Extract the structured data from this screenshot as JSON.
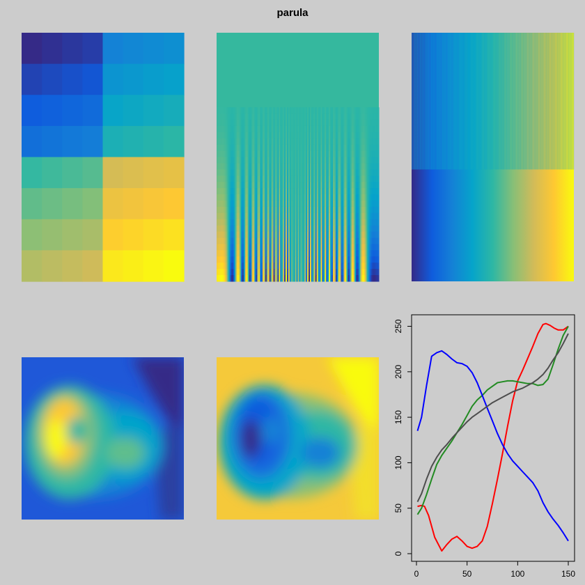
{
  "title": "parula",
  "colors": {
    "background": "#cccccc",
    "parula": [
      "#352A87",
      "#0F5CDD",
      "#1481D6",
      "#06A4CA",
      "#2EB7A4",
      "#87BF77",
      "#D1BB59",
      "#FEC832",
      "#F9FB0E"
    ],
    "red": "#ff0000",
    "green": "#228B22",
    "blue": "#0000ff",
    "gray": "#4d4d4d"
  },
  "panels": [
    {
      "name": "block-image",
      "type": "image",
      "description_in_data_only": false
    },
    {
      "name": "frequency-image",
      "type": "image"
    },
    {
      "name": "gradient-image",
      "type": "image"
    },
    {
      "name": "volcano-image",
      "type": "image"
    },
    {
      "name": "volcano-reversed-image",
      "type": "image"
    }
  ],
  "chart_data": {
    "type": "line",
    "title": "",
    "xlabel": "",
    "ylabel": "",
    "xlim": [
      0,
      150
    ],
    "ylim": [
      0,
      255
    ],
    "x_ticks": [
      0,
      50,
      100,
      150
    ],
    "y_ticks": [
      0,
      50,
      100,
      150,
      200,
      250
    ],
    "x_tick_labels": [
      "0",
      "50",
      "100",
      "150"
    ],
    "y_tick_labels": [
      "0",
      "50",
      "100",
      "150",
      "200",
      "250"
    ],
    "series": [
      {
        "name": "red",
        "color": "#ff0000",
        "x": [
          1,
          5,
          8,
          12,
          18,
          25,
          30,
          35,
          40,
          45,
          50,
          55,
          60,
          65,
          70,
          75,
          80,
          85,
          90,
          95,
          100,
          105,
          110,
          115,
          120,
          125,
          128,
          132,
          136,
          140,
          145,
          150
        ],
        "y": [
          52,
          53,
          52,
          42,
          18,
          3,
          10,
          16,
          19,
          14,
          8,
          6,
          8,
          14,
          30,
          55,
          82,
          110,
          140,
          168,
          190,
          202,
          215,
          228,
          242,
          252,
          253,
          251,
          248,
          246,
          246,
          250
        ]
      },
      {
        "name": "green",
        "color": "#228B22",
        "x": [
          1,
          5,
          10,
          15,
          20,
          25,
          30,
          35,
          40,
          45,
          50,
          55,
          60,
          65,
          70,
          75,
          80,
          85,
          90,
          95,
          100,
          105,
          110,
          115,
          120,
          125,
          130,
          135,
          140,
          145,
          150
        ],
        "y": [
          43,
          50,
          65,
          82,
          98,
          108,
          116,
          124,
          133,
          142,
          152,
          162,
          169,
          174,
          180,
          184,
          188,
          189,
          190,
          190,
          189,
          188,
          187,
          187,
          185,
          186,
          192,
          208,
          225,
          240,
          250
        ]
      },
      {
        "name": "blue",
        "color": "#0000ff",
        "x": [
          1,
          5,
          10,
          15,
          20,
          25,
          30,
          35,
          40,
          45,
          50,
          55,
          60,
          65,
          70,
          75,
          80,
          85,
          90,
          95,
          100,
          105,
          110,
          115,
          120,
          125,
          130,
          135,
          140,
          145,
          150
        ],
        "y": [
          135,
          150,
          185,
          217,
          221,
          223,
          219,
          214,
          210,
          209,
          206,
          199,
          188,
          174,
          160,
          146,
          132,
          120,
          110,
          102,
          96,
          90,
          84,
          78,
          69,
          56,
          46,
          38,
          31,
          23,
          14
        ]
      },
      {
        "name": "gray",
        "color": "#4d4d4d",
        "x": [
          1,
          5,
          10,
          15,
          20,
          25,
          30,
          35,
          40,
          45,
          50,
          55,
          60,
          65,
          70,
          75,
          80,
          85,
          90,
          95,
          100,
          105,
          110,
          115,
          120,
          125,
          130,
          135,
          140,
          145,
          150
        ],
        "y": [
          57,
          66,
          82,
          96,
          106,
          114,
          120,
          127,
          133,
          139,
          145,
          150,
          154,
          158,
          162,
          166,
          169,
          172,
          175,
          178,
          180,
          182,
          185,
          188,
          192,
          197,
          204,
          213,
          221,
          231,
          242
        ]
      }
    ]
  }
}
